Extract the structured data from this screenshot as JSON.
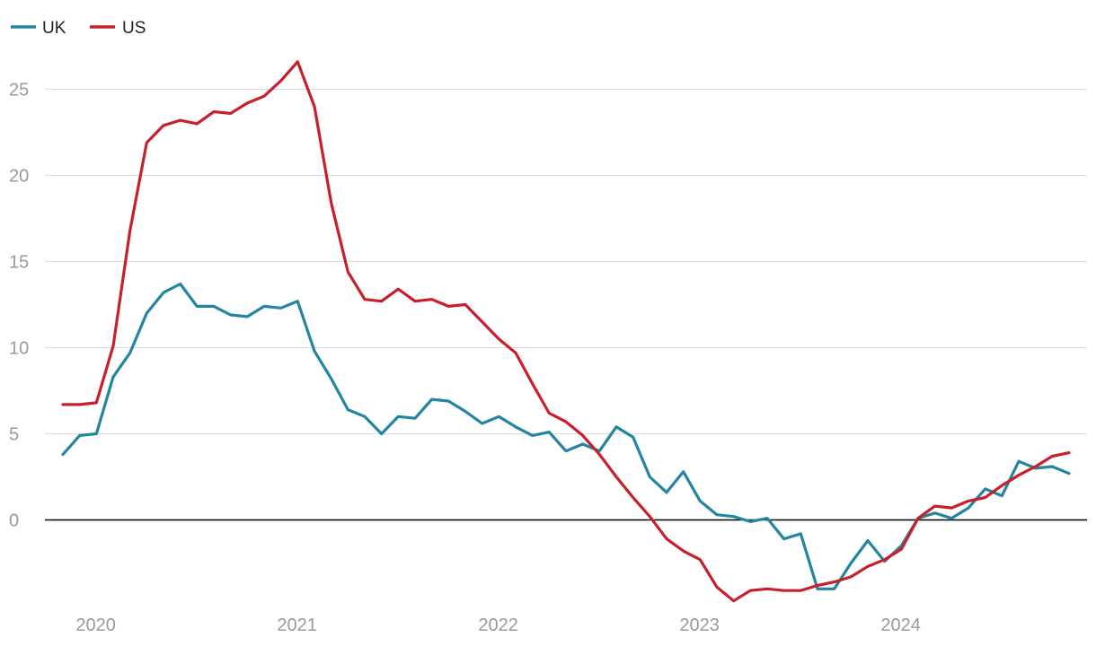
{
  "chart_data": {
    "type": "line",
    "title": "",
    "xlabel": "",
    "ylabel": "",
    "ylim": [
      -4.8,
      27
    ],
    "yticks": [
      0,
      5,
      10,
      15,
      20,
      25
    ],
    "ytick_labels": [
      "0",
      "5",
      "10",
      "15",
      "20",
      "25"
    ],
    "xticks": [
      "2020",
      "2021",
      "2022",
      "2023",
      "2024"
    ],
    "xlim": [
      "2019-12",
      "2024-12"
    ],
    "legend_position": "top-left",
    "grid": true,
    "x": [
      "2019-12",
      "2020-01",
      "2020-02",
      "2020-03",
      "2020-04",
      "2020-05",
      "2020-06",
      "2020-07",
      "2020-08",
      "2020-09",
      "2020-10",
      "2020-11",
      "2020-12",
      "2021-01",
      "2021-02",
      "2021-03",
      "2021-04",
      "2021-05",
      "2021-06",
      "2021-07",
      "2021-08",
      "2021-09",
      "2021-10",
      "2021-11",
      "2021-12",
      "2022-01",
      "2022-02",
      "2022-03",
      "2022-04",
      "2022-05",
      "2022-06",
      "2022-07",
      "2022-08",
      "2022-09",
      "2022-10",
      "2022-11",
      "2022-12",
      "2023-01",
      "2023-02",
      "2023-03",
      "2023-04",
      "2023-05",
      "2023-06",
      "2023-07",
      "2023-08",
      "2023-09",
      "2023-10",
      "2023-11",
      "2023-12",
      "2024-01",
      "2024-02",
      "2024-03",
      "2024-04",
      "2024-05",
      "2024-06",
      "2024-07",
      "2024-08",
      "2024-09",
      "2024-10",
      "2024-11",
      "2024-12"
    ],
    "series": [
      {
        "name": "UK",
        "color": "#23859f",
        "values": [
          3.8,
          4.9,
          5.0,
          8.3,
          9.7,
          12.0,
          13.2,
          13.7,
          12.4,
          12.4,
          11.9,
          11.8,
          12.4,
          12.3,
          12.7,
          9.8,
          8.2,
          6.4,
          6.0,
          5.0,
          6.0,
          5.9,
          7.0,
          6.9,
          6.3,
          5.6,
          6.0,
          5.4,
          4.9,
          5.1,
          4.0,
          4.4,
          4.0,
          5.4,
          4.8,
          2.5,
          1.6,
          2.8,
          1.1,
          0.3,
          0.2,
          -0.1,
          0.1,
          -1.1,
          -0.8,
          -4.0,
          -4.0,
          -2.5,
          -1.2,
          -2.4,
          -1.5,
          0.1,
          0.4,
          0.1,
          0.7,
          1.8,
          1.4,
          3.4,
          3.0,
          3.1,
          2.7
        ]
      },
      {
        "name": "US",
        "color": "#c8202a",
        "values": [
          6.7,
          6.7,
          6.8,
          10.1,
          16.8,
          21.9,
          22.9,
          23.2,
          23.0,
          23.7,
          23.6,
          24.2,
          24.6,
          25.5,
          26.6,
          24.0,
          18.4,
          14.4,
          12.8,
          12.7,
          13.4,
          12.7,
          12.8,
          12.4,
          12.5,
          11.5,
          10.5,
          9.7,
          7.9,
          6.2,
          5.7,
          4.9,
          3.8,
          2.5,
          1.3,
          0.2,
          -1.1,
          -1.8,
          -2.3,
          -3.9,
          -4.7,
          -4.1,
          -4.0,
          -4.1,
          -4.1,
          -3.8,
          -3.6,
          -3.3,
          -2.7,
          -2.3,
          -1.7,
          0.1,
          0.8,
          0.7,
          1.1,
          1.3,
          2.0,
          2.6,
          3.1,
          3.7,
          3.9
        ]
      }
    ]
  }
}
